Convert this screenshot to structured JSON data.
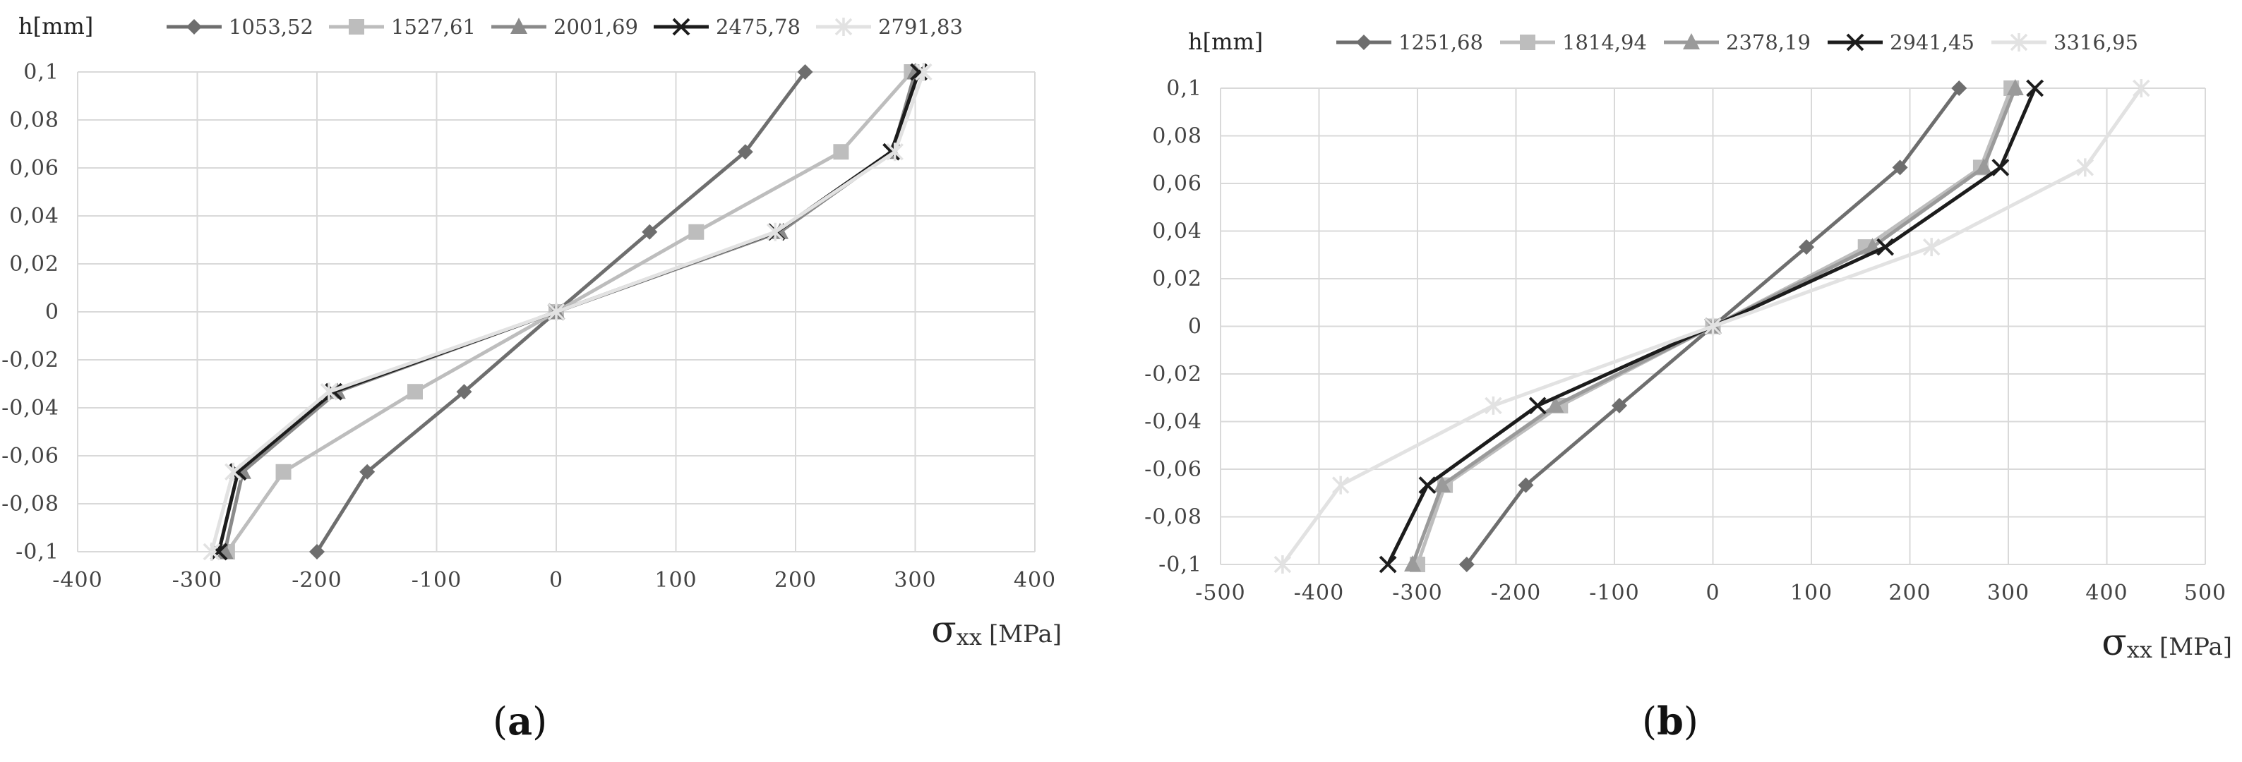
{
  "chart_data": [
    {
      "type": "line",
      "ylabel": "h[mm]",
      "xlabel_symbol": "σ",
      "xlabel_sub": "xx",
      "xlabel_unit": "[MPa]",
      "xlim": [
        -400,
        400
      ],
      "ylim": [
        -0.1,
        0.1
      ],
      "x_ticks": [
        "-400",
        "-300",
        "-200",
        "-100",
        "0",
        "100",
        "200",
        "300",
        "400"
      ],
      "y_ticks": [
        "-0,1",
        "-0,08",
        "-0,06",
        "-0,04",
        "-0,02",
        "0",
        "0,02",
        "0,04",
        "0,06",
        "0,08",
        "0,1"
      ],
      "grid": true,
      "legend_position": "top",
      "y": [
        -0.1,
        -0.0667,
        -0.0333,
        0,
        0.0333,
        0.0667,
        0.1
      ],
      "series": [
        {
          "name": "1053,52",
          "color": "#6e6e6e",
          "marker": "diamond",
          "x": [
            -200,
            -158,
            -77,
            0,
            78,
            158,
            208
          ]
        },
        {
          "name": "1527,61",
          "color": "#bdbdbd",
          "marker": "square",
          "x": [
            -275,
            -228,
            -118,
            0,
            117,
            238,
            297
          ]
        },
        {
          "name": "2001,69",
          "color": "#8a8a8a",
          "marker": "triangle",
          "x": [
            -277,
            -262,
            -183,
            0,
            187,
            281,
            300
          ]
        },
        {
          "name": "2475,78",
          "color": "#1c1c1c",
          "marker": "x",
          "x": [
            -282,
            -266,
            -186,
            0,
            184,
            280,
            303
          ]
        },
        {
          "name": "2791,83",
          "color": "#e2e2e2",
          "marker": "star",
          "x": [
            -288,
            -270,
            -190,
            0,
            183,
            283,
            307
          ]
        }
      ],
      "caption": "a"
    },
    {
      "type": "line",
      "ylabel": "h[mm]",
      "xlabel_symbol": "σ",
      "xlabel_sub": "xx",
      "xlabel_unit": "[MPa]",
      "xlim": [
        -500,
        500
      ],
      "ylim": [
        -0.1,
        0.1
      ],
      "x_ticks": [
        "-500",
        "-400",
        "-300",
        "-200",
        "-100",
        "0",
        "100",
        "200",
        "300",
        "400",
        "500"
      ],
      "y_ticks": [
        "-0,1",
        "-0,08",
        "-0,06",
        "-0,04",
        "-0,02",
        "0",
        "0,02",
        "0,04",
        "0,06",
        "0,08",
        "0,1"
      ],
      "grid": true,
      "legend_position": "top",
      "y": [
        -0.1,
        -0.0667,
        -0.0333,
        0,
        0.0333,
        0.0667,
        0.1
      ],
      "series": [
        {
          "name": "1251,68",
          "color": "#6e6e6e",
          "marker": "diamond",
          "x": [
            -250,
            -190,
            -95,
            0,
            95,
            190,
            250
          ]
        },
        {
          "name": "1814,94",
          "color": "#bdbdbd",
          "marker": "square",
          "x": [
            -300,
            -272,
            -155,
            0,
            155,
            272,
            303
          ]
        },
        {
          "name": "2378,19",
          "color": "#9a9a9a",
          "marker": "triangle",
          "x": [
            -305,
            -275,
            -160,
            0,
            162,
            275,
            307
          ]
        },
        {
          "name": "2941,45",
          "color": "#1c1c1c",
          "marker": "x",
          "x": [
            -330,
            -290,
            -178,
            0,
            175,
            292,
            327
          ]
        },
        {
          "name": "3316,95",
          "color": "#e2e2e2",
          "marker": "star",
          "x": [
            -437,
            -378,
            -223,
            0,
            222,
            378,
            435
          ]
        }
      ],
      "caption": "b"
    }
  ]
}
